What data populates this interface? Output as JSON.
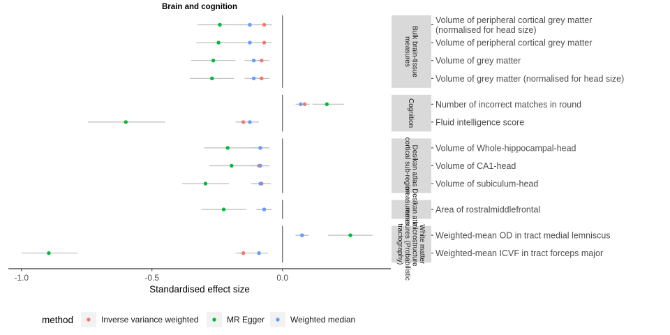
{
  "chart_data": {
    "type": "scatter",
    "title": "Brain and cognition",
    "xlabel": "Standardised effect size",
    "xlim": [
      -1.05,
      0.415
    ],
    "xticks": [
      -1.0,
      -0.5,
      0.0
    ],
    "xtick_labels": [
      "-1.0",
      "-0.5",
      "0.0"
    ],
    "legend": {
      "title": "method",
      "position": "bottom",
      "entries": [
        {
          "name": "Inverse variance weighted",
          "color": "#F8766D"
        },
        {
          "name": "MR Egger",
          "color": "#00BA38"
        },
        {
          "name": "Weighted median",
          "color": "#619CFF"
        }
      ]
    },
    "panels": [
      {
        "strip": [
          "Bulk brain-tissue",
          "measures"
        ],
        "rows": [
          {
            "label": [
              "Volume of peripheral cortical grey matter",
              "(normalised for head size)"
            ],
            "points": [
              {
                "method": "Inverse variance weighted",
                "est": -0.07,
                "lo": -0.1,
                "hi": -0.04
              },
              {
                "method": "MR Egger",
                "est": -0.24,
                "lo": -0.325,
                "hi": -0.155
              },
              {
                "method": "Weighted median",
                "est": -0.125,
                "lo": -0.165,
                "hi": -0.085
              }
            ]
          },
          {
            "label": [
              "Volume of peripheral cortical grey matter"
            ],
            "points": [
              {
                "method": "Inverse variance weighted",
                "est": -0.07,
                "lo": -0.1,
                "hi": -0.04
              },
              {
                "method": "MR Egger",
                "est": -0.245,
                "lo": -0.33,
                "hi": -0.16
              },
              {
                "method": "Weighted median",
                "est": -0.125,
                "lo": -0.165,
                "hi": -0.085
              }
            ]
          },
          {
            "label": [
              "Volume of grey matter"
            ],
            "points": [
              {
                "method": "Inverse variance weighted",
                "est": -0.08,
                "lo": -0.11,
                "hi": -0.05
              },
              {
                "method": "MR Egger",
                "est": -0.265,
                "lo": -0.35,
                "hi": -0.18
              },
              {
                "method": "Weighted median",
                "est": -0.11,
                "lo": -0.145,
                "hi": -0.075
              }
            ]
          },
          {
            "label": [
              "Volume of grey matter (normalised for head size)"
            ],
            "points": [
              {
                "method": "Inverse variance weighted",
                "est": -0.08,
                "lo": -0.11,
                "hi": -0.05
              },
              {
                "method": "MR Egger",
                "est": -0.27,
                "lo": -0.355,
                "hi": -0.185
              },
              {
                "method": "Weighted median",
                "est": -0.11,
                "lo": -0.145,
                "hi": -0.075
              }
            ]
          }
        ]
      },
      {
        "strip": [
          "Cognition"
        ],
        "rows": [
          {
            "label": [
              "Number of incorrect matches in round"
            ],
            "points": [
              {
                "method": "Inverse variance weighted",
                "est": 0.085,
                "lo": 0.065,
                "hi": 0.105
              },
              {
                "method": "MR Egger",
                "est": 0.17,
                "lo": 0.115,
                "hi": 0.235
              },
              {
                "method": "Weighted median",
                "est": 0.07,
                "lo": 0.05,
                "hi": 0.09
              }
            ]
          },
          {
            "label": [
              "Fluid intelligence score"
            ],
            "points": [
              {
                "method": "Inverse variance weighted",
                "est": -0.15,
                "lo": -0.18,
                "hi": -0.12
              },
              {
                "method": "MR Egger",
                "est": -0.6,
                "lo": -0.745,
                "hi": -0.45
              },
              {
                "method": "Weighted median",
                "est": -0.125,
                "lo": -0.16,
                "hi": -0.09
              }
            ]
          }
        ]
      },
      {
        "strip": [
          "Desikan atlas",
          "cortical sub-region"
        ],
        "rows": [
          {
            "label": [
              "Volume of Whole-hippocampal-head"
            ],
            "points": [
              {
                "method": "Inverse variance weighted",
                "est": -0.085,
                "lo": -0.12,
                "hi": -0.05
              },
              {
                "method": "MR Egger",
                "est": -0.21,
                "lo": -0.3,
                "hi": -0.12
              },
              {
                "method": "Weighted median",
                "est": -0.085,
                "lo": -0.12,
                "hi": -0.05
              }
            ]
          },
          {
            "label": [
              "Volume of CA1-head"
            ],
            "points": [
              {
                "method": "Inverse variance weighted",
                "est": -0.09,
                "lo": -0.125,
                "hi": -0.055
              },
              {
                "method": "MR Egger",
                "est": -0.195,
                "lo": -0.28,
                "hi": -0.11
              },
              {
                "method": "Weighted median",
                "est": -0.085,
                "lo": -0.12,
                "hi": -0.05
              }
            ]
          },
          {
            "label": [
              "Volume of subiculum-head"
            ],
            "points": [
              {
                "method": "Inverse variance weighted",
                "est": -0.08,
                "lo": -0.115,
                "hi": -0.045
              },
              {
                "method": "MR Egger",
                "est": -0.295,
                "lo": -0.385,
                "hi": -0.205
              },
              {
                "method": "Weighted median",
                "est": -0.085,
                "lo": -0.12,
                "hi": -0.05
              }
            ]
          }
        ]
      },
      {
        "strip": [
          "Desikan atlas",
          "measurements"
        ],
        "rows": [
          {
            "label": [
              "Area of rostralmiddlefrontal"
            ],
            "points": [
              {
                "method": "Inverse variance weighted",
                "est": -0.07,
                "lo": -0.1,
                "hi": -0.04
              },
              {
                "method": "MR Egger",
                "est": -0.225,
                "lo": -0.31,
                "hi": -0.14
              },
              {
                "method": "Weighted median",
                "est": -0.07,
                "lo": -0.095,
                "hi": -0.045
              }
            ]
          }
        ]
      },
      {
        "strip": [
          "White matter",
          "microstructure",
          "measures (Probabilistic",
          "tractography)"
        ],
        "rows": [
          {
            "label": [
              "Weighted-mean OD in tract medial lemniscus"
            ],
            "points": [
              {
                "method": "Inverse variance weighted",
                "est": 0.075,
                "lo": 0.05,
                "hi": 0.1
              },
              {
                "method": "MR Egger",
                "est": 0.26,
                "lo": 0.175,
                "hi": 0.345
              },
              {
                "method": "Weighted median",
                "est": 0.075,
                "lo": 0.05,
                "hi": 0.1
              }
            ]
          },
          {
            "label": [
              "Weighted-mean ICVF in tract forceps major"
            ],
            "points": [
              {
                "method": "Inverse variance weighted",
                "est": -0.15,
                "lo": -0.18,
                "hi": -0.12
              },
              {
                "method": "MR Egger",
                "est": -0.895,
                "lo": -1.0,
                "hi": -0.785
              },
              {
                "method": "Weighted median",
                "est": -0.09,
                "lo": -0.125,
                "hi": -0.055
              }
            ]
          }
        ]
      }
    ]
  }
}
